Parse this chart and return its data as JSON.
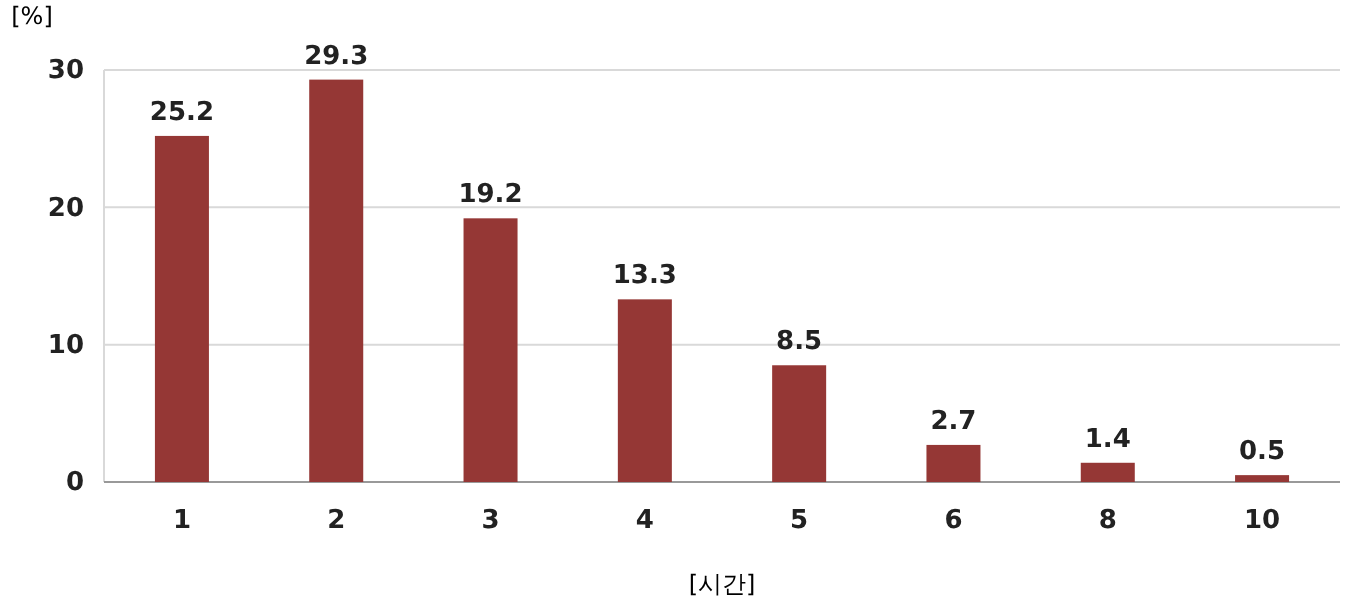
{
  "chart_data": {
    "type": "bar",
    "ylabel": "[%]",
    "xlabel": "[시간]",
    "categories": [
      "1",
      "2",
      "3",
      "4",
      "5",
      "6",
      "8",
      "10"
    ],
    "values": [
      25.2,
      29.3,
      19.2,
      13.3,
      8.5,
      2.7,
      1.4,
      0.5
    ],
    "color": "#953735",
    "ylim": [
      0,
      30
    ],
    "yticks": [
      0,
      10,
      20,
      30
    ],
    "grid": "y",
    "data_labels": true
  }
}
